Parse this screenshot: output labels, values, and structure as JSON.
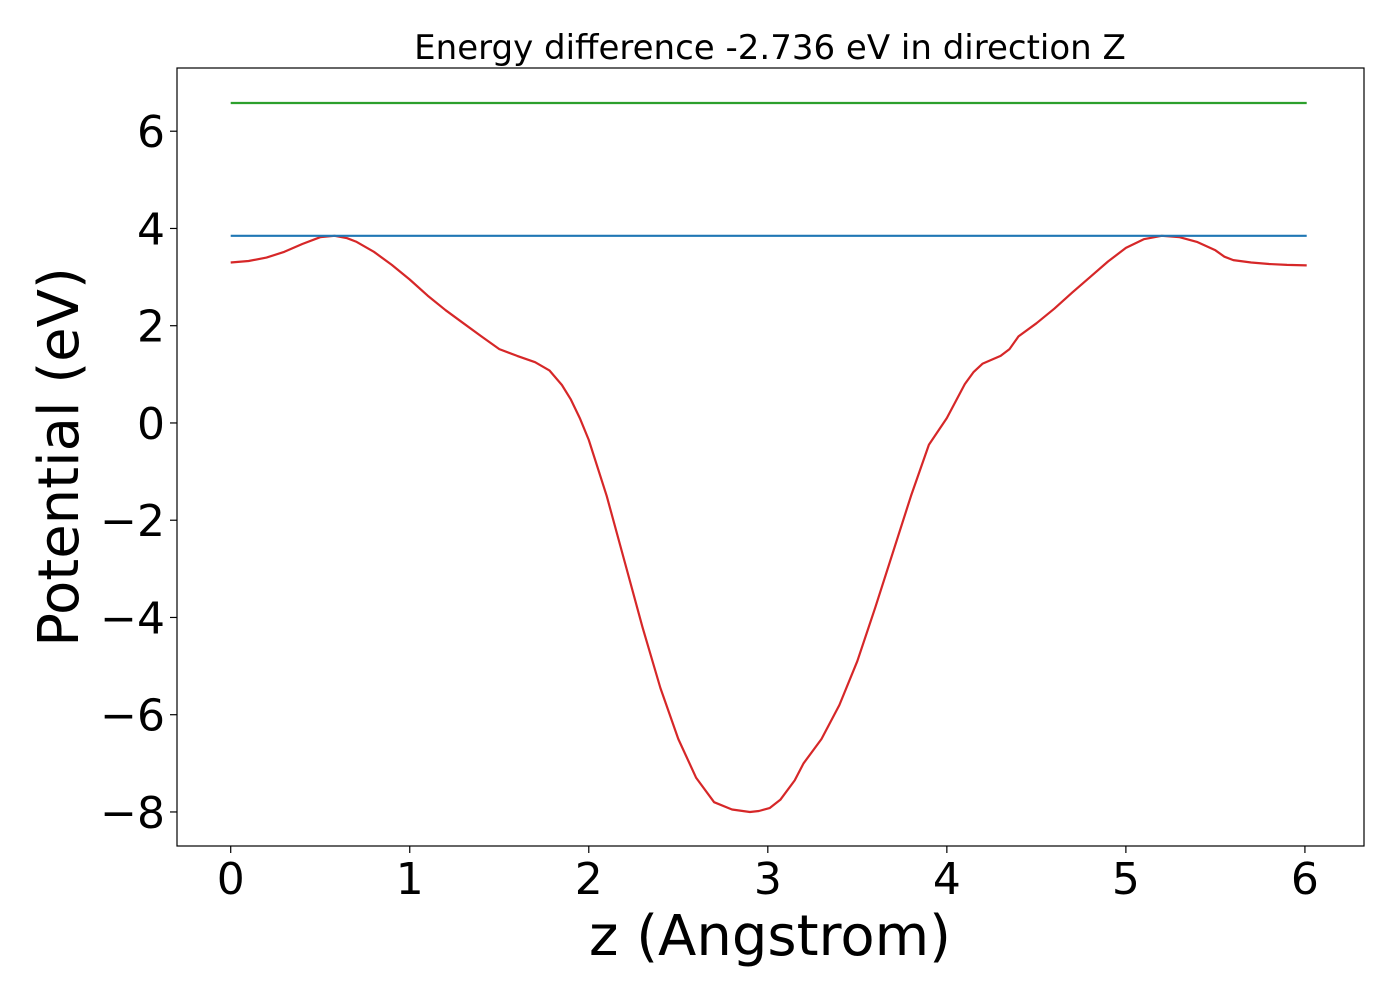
{
  "chart_data": {
    "type": "line",
    "title": "Energy difference -2.736 eV in direction Z",
    "xlabel": "z (Angstrom)",
    "ylabel": "Potential (eV)",
    "xlim": [
      -0.3,
      6.33
    ],
    "ylim": [
      -8.7,
      7.3
    ],
    "xticks": [
      0,
      1,
      2,
      3,
      4,
      5,
      6
    ],
    "xtick_labels": [
      "0",
      "1",
      "2",
      "3",
      "4",
      "5",
      "6"
    ],
    "yticks": [
      -8,
      -6,
      -4,
      -2,
      0,
      2,
      4,
      6
    ],
    "ytick_labels": [
      "−8",
      "−6",
      "−4",
      "−2",
      "0",
      "2",
      "4",
      "6"
    ],
    "grid": false,
    "series": [
      {
        "color": "#d62728",
        "x": [
          0,
          0.1,
          0.2,
          0.3,
          0.4,
          0.5,
          0.58,
          0.65,
          0.7,
          0.8,
          0.9,
          1.0,
          1.1,
          1.2,
          1.3,
          1.4,
          1.5,
          1.6,
          1.7,
          1.78,
          1.85,
          1.9,
          1.95,
          2.0,
          2.1,
          2.2,
          2.3,
          2.4,
          2.5,
          2.6,
          2.7,
          2.8,
          2.9,
          2.95,
          3.01,
          3.07,
          3.15,
          3.2,
          3.3,
          3.4,
          3.5,
          3.6,
          3.7,
          3.8,
          3.9,
          4.0,
          4.05,
          4.1,
          4.15,
          4.2,
          4.25,
          4.3,
          4.35,
          4.4,
          4.5,
          4.6,
          4.7,
          4.8,
          4.9,
          5.0,
          5.1,
          5.2,
          5.3,
          5.4,
          5.5,
          5.55,
          5.6,
          5.7,
          5.8,
          5.9,
          6.01
        ],
        "y": [
          3.3,
          3.33,
          3.4,
          3.52,
          3.68,
          3.82,
          3.85,
          3.8,
          3.73,
          3.52,
          3.25,
          2.95,
          2.62,
          2.32,
          2.05,
          1.78,
          1.52,
          1.38,
          1.25,
          1.08,
          0.78,
          0.48,
          0.1,
          -0.35,
          -1.5,
          -2.85,
          -4.2,
          -5.45,
          -6.5,
          -7.3,
          -7.8,
          -7.95,
          -8.0,
          -7.98,
          -7.92,
          -7.75,
          -7.35,
          -7.0,
          -6.5,
          -5.8,
          -4.9,
          -3.8,
          -2.65,
          -1.5,
          -0.45,
          0.1,
          0.45,
          0.8,
          1.05,
          1.22,
          1.3,
          1.38,
          1.52,
          1.78,
          2.05,
          2.35,
          2.68,
          3.0,
          3.32,
          3.6,
          3.78,
          3.85,
          3.82,
          3.72,
          3.55,
          3.42,
          3.35,
          3.3,
          3.27,
          3.25,
          3.24
        ]
      },
      {
        "color": "#1f77b4",
        "x": [
          0,
          6.01
        ],
        "y": [
          3.85,
          3.85
        ]
      },
      {
        "color": "#2ca02c",
        "x": [
          0,
          6.01
        ],
        "y": [
          6.58,
          6.58
        ]
      }
    ]
  }
}
